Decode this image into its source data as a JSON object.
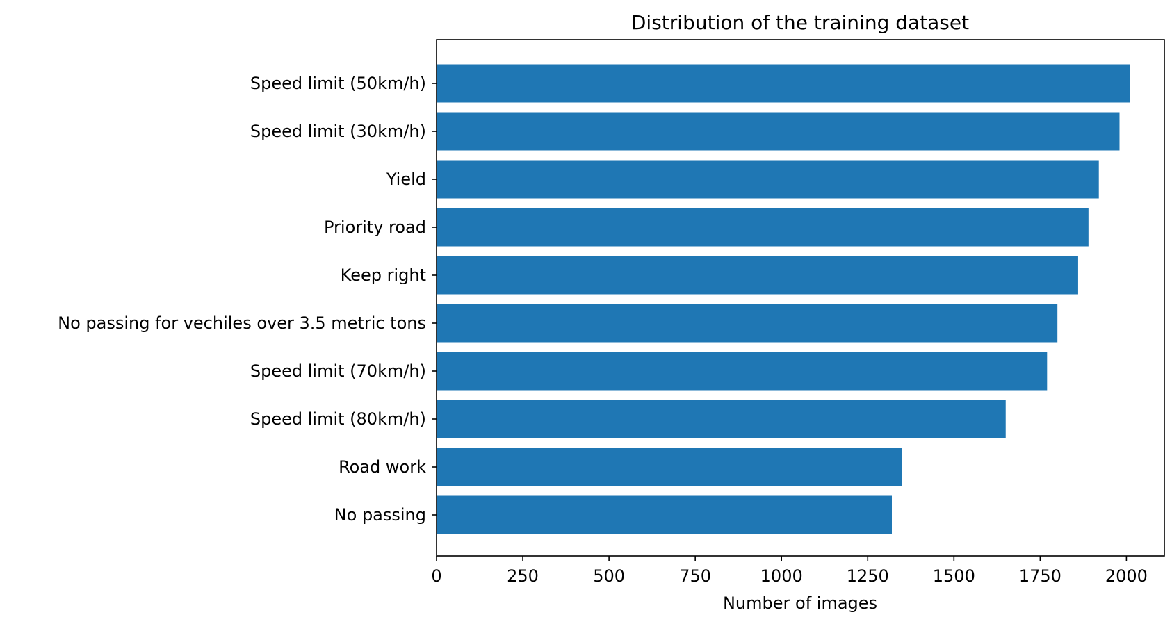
{
  "chart_data": {
    "type": "bar",
    "orientation": "horizontal",
    "title": "Distribution of the training dataset",
    "xlabel": "Number of images",
    "ylabel": "",
    "xlim": [
      0,
      2110
    ],
    "x_ticks": [
      0,
      250,
      500,
      750,
      1000,
      1250,
      1500,
      1750,
      2000
    ],
    "grid": false,
    "legend": "none",
    "bar_color": "#1f77b4",
    "categories": [
      "Speed limit (50km/h)",
      "Speed limit (30km/h)",
      "Yield",
      "Priority road",
      "Keep right",
      "No passing for vechiles over 3.5 metric tons",
      "Speed limit (70km/h)",
      "Speed limit (80km/h)",
      "Road work",
      "No passing"
    ],
    "values": [
      2010,
      1980,
      1920,
      1890,
      1860,
      1800,
      1770,
      1650,
      1350,
      1320
    ]
  }
}
